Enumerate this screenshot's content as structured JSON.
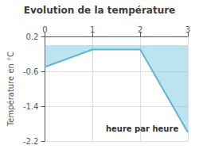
{
  "chart_data": {
    "type": "area",
    "title": "Evolution de la température",
    "ylabel": "Température en °C",
    "annotations": [
      "heure par heure"
    ],
    "x": [
      0,
      1,
      2,
      3
    ],
    "values": [
      -0.5,
      -0.1,
      -0.1,
      -2.0
    ],
    "color": "#5bb8d4",
    "xlim": [
      0,
      3
    ],
    "ylim": [
      -2.2,
      0.2
    ],
    "xticks": [
      0,
      1,
      2,
      3
    ],
    "yticks": [
      0.2,
      -0.6,
      -1.4,
      -2.2
    ],
    "grid": true
  }
}
